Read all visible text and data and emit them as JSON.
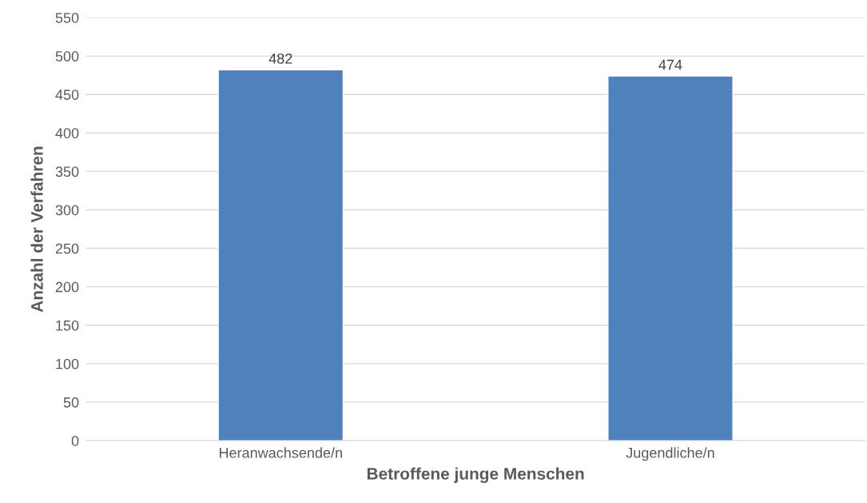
{
  "chart_data": {
    "type": "bar",
    "xlabel": "Betroffene junge Menschen",
    "ylabel": "Anzahl der Verfahren",
    "categories": [
      "Heranwachsende/n",
      "Jugendliche/n"
    ],
    "values": [
      482,
      474
    ],
    "color": "#4f81bd",
    "data_labels": true,
    "ylim": [
      0,
      550
    ],
    "yticks": [
      0,
      50,
      100,
      150,
      200,
      250,
      300,
      350,
      400,
      450,
      500,
      550
    ],
    "grid": "y",
    "legend": false
  }
}
